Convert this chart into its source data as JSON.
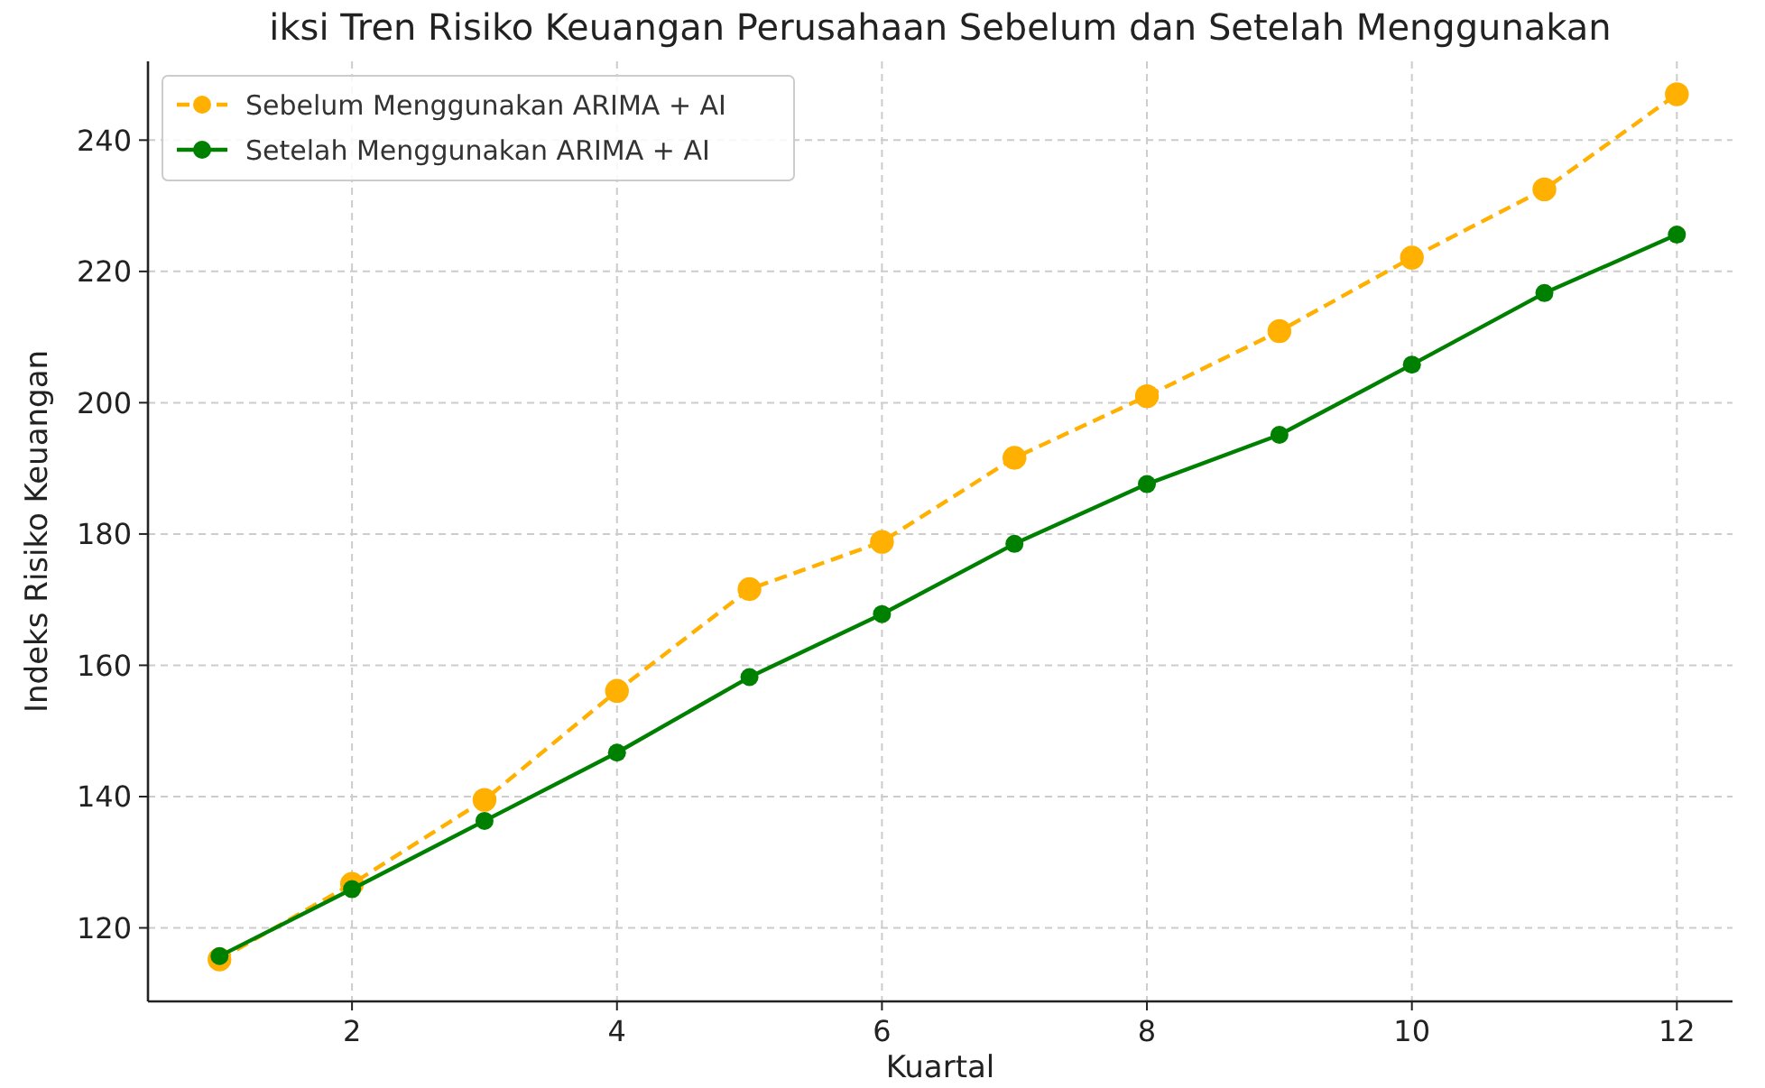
{
  "chart_data": {
    "type": "line",
    "title": "iksi Tren Risiko Keuangan Perusahaan Sebelum dan Setelah Menggunakan",
    "xlabel": "Kuartal",
    "ylabel": "Indeks Risiko Keuangan",
    "x": [
      1,
      2,
      3,
      4,
      5,
      6,
      7,
      8,
      9,
      10,
      11,
      12
    ],
    "series": [
      {
        "name": "Sebelum Menggunakan ARIMA + AI",
        "color": "#ffb000",
        "line_style": "dashed",
        "values": [
          115.2,
          126.7,
          139.5,
          156.1,
          171.6,
          178.8,
          191.6,
          201.0,
          210.9,
          222.1,
          232.5,
          247.0
        ]
      },
      {
        "name": "Setelah Menggunakan ARIMA + AI",
        "color": "#008000",
        "line_style": "solid",
        "values": [
          115.7,
          125.9,
          136.3,
          146.7,
          158.2,
          167.8,
          178.5,
          187.6,
          195.1,
          205.8,
          216.7,
          225.6
        ]
      }
    ],
    "xlim": [
      0.46,
      12.42
    ],
    "xticks": [
      2,
      4,
      6,
      8,
      10,
      12
    ],
    "ylim": [
      108.8,
      252
    ],
    "yticks": [
      120,
      140,
      160,
      180,
      200,
      220,
      240
    ],
    "grid": true,
    "legend": "top left",
    "marker": "circle"
  }
}
